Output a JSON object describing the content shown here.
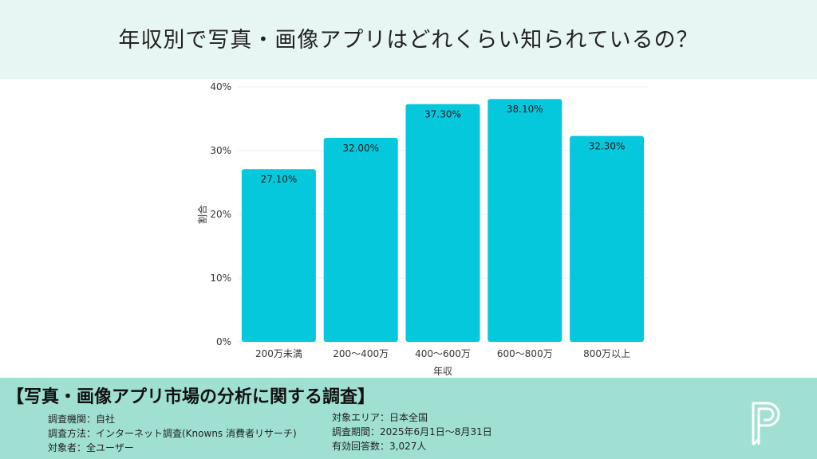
{
  "header": {
    "title": "年収別で写真・画像アプリはどれくらい知られているの？"
  },
  "chart_data": {
    "type": "bar",
    "categories": [
      "200万未満",
      "200〜400万",
      "400〜600万",
      "600〜800万",
      "800万以上"
    ],
    "values": [
      27.1,
      32.0,
      37.3,
      38.1,
      32.3
    ],
    "value_labels": [
      "27.10%",
      "32.00%",
      "37.30%",
      "38.10%",
      "32.30%"
    ],
    "title": "",
    "xlabel": "年収",
    "ylabel": "割合",
    "ylim": [
      0,
      40
    ],
    "yticks": [
      0,
      10,
      20,
      30,
      40
    ],
    "ytick_labels": [
      "0%",
      "10%",
      "20%",
      "30%",
      "40%"
    ],
    "grid": true,
    "bar_color": "#05c8dc"
  },
  "footer": {
    "title": "【写真・画像アプリ市場の分析に関する調査】",
    "left_lines": [
      "調査機関：自社",
      "調査方法：インターネット調査(Knowns 消費者リサーチ)",
      "対象者：全ユーザー"
    ],
    "right_lines": [
      "対象エリア：日本全国",
      "調査期間：2025年6月1日〜8月31日",
      "有効回答数：3,027人"
    ]
  },
  "logo": {
    "icon": "p-logo-icon"
  },
  "colors": {
    "header_bg": "#e8f6f3",
    "footer_bg": "#9fe0d3",
    "bar": "#05c8dc"
  }
}
